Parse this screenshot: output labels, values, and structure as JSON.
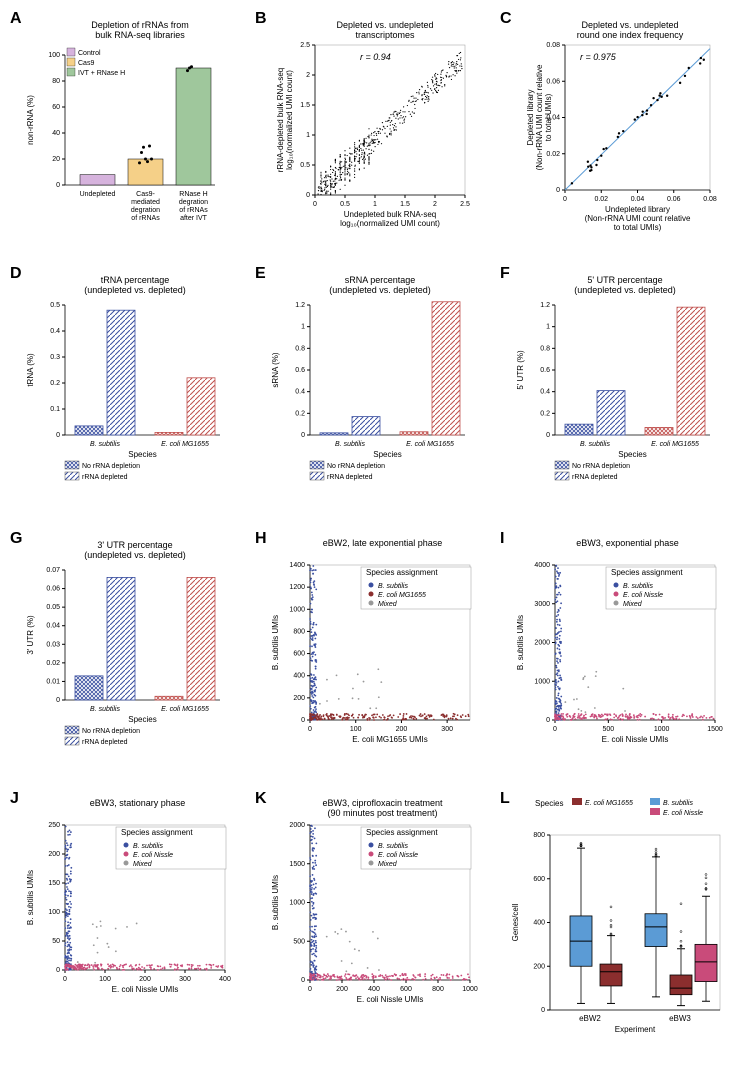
{
  "panelA": {
    "label": "A",
    "title": "Depletion of rRNAs from\nbulk RNA-seq libraries",
    "ylabel": "non-rRNA (%)",
    "ylim": [
      0,
      100
    ],
    "yticks": [
      0,
      20,
      40,
      60,
      80,
      100
    ],
    "categories": [
      "Undepleted",
      "Cas9-\nmediated\ndegration\nof rRNAs",
      "RNase H\ndegration\nof rRNAs\nafter IVT"
    ],
    "values": [
      8,
      20,
      90
    ],
    "bar_colors": [
      "#d6b3dd",
      "#f5d088",
      "#9fc79c"
    ],
    "legend_items": [
      "Control",
      "Cas9",
      "IVT + RNase H"
    ],
    "legend_colors": [
      "#d6b3dd",
      "#f5d088",
      "#9fc79c"
    ],
    "dots": {
      "1": [
        17,
        25,
        29,
        20,
        18,
        30,
        20
      ],
      "2": [
        88,
        90,
        91
      ]
    },
    "dot_color": "#000000"
  },
  "panelB": {
    "label": "B",
    "title": "Depleted vs. undepleted\ntranscriptomes",
    "xlabel": "Undepleted bulk RNA-seq\nlog₁₀(normalized UMI count)",
    "ylabel": "rRNA-depleted bulk RNA-seq\nlog₁₀(normalized UMI count)",
    "xlim": [
      0,
      2.5
    ],
    "ylim": [
      0,
      2.5
    ],
    "xticks": [
      0,
      0.5,
      1.0,
      1.5,
      2.0,
      2.5
    ],
    "yticks": [
      0,
      0.5,
      1.0,
      1.5,
      2.0,
      2.5
    ],
    "r_text": "r = 0.94",
    "point_color": "#000000"
  },
  "panelC": {
    "label": "C",
    "title": "Depleted vs. undepleted\nround one index frequency",
    "xlabel": "Undepleted library\n(Non-rRNA UMI count relative\nto total UMIs)",
    "ylabel": "Depleted library\n(Non-rRNA UMI count relative\nto total UMIs)",
    "xlim": [
      0,
      0.08
    ],
    "ylim": [
      0,
      0.08
    ],
    "xticks": [
      0,
      0.02,
      0.04,
      0.06,
      0.08
    ],
    "yticks": [
      0,
      0.02,
      0.04,
      0.06,
      0.08
    ],
    "r_text": "r = 0.975",
    "point_color": "#000000",
    "line_color": "#5b9bd5"
  },
  "panelD": {
    "label": "D",
    "title": "tRNA percentage\n(undepleted vs. depleted)",
    "ylabel": "tRNA (%)",
    "ylim": [
      0,
      0.5
    ],
    "yticks": [
      0.0,
      0.1,
      0.2,
      0.3,
      0.4,
      0.5
    ],
    "xlabel": "Species",
    "groups": [
      "B. subtilis",
      "E. coli MG1655"
    ],
    "series": [
      "No rRNA depletion",
      "rRNA depleted"
    ],
    "values": [
      [
        0.035,
        0.48
      ],
      [
        0.01,
        0.22
      ]
    ],
    "colors": [
      "#3a4fa0",
      "#c0504d"
    ]
  },
  "panelE": {
    "label": "E",
    "title": "sRNA percentage\n(undepleted vs. depleted)",
    "ylabel": "sRNA (%)",
    "ylim": [
      0,
      1.2
    ],
    "yticks": [
      0.0,
      0.2,
      0.4,
      0.6,
      0.8,
      1.0,
      1.2
    ],
    "xlabel": "Species",
    "groups": [
      "B. subtilis",
      "E. coli MG1655"
    ],
    "series": [
      "No rRNA depletion",
      "rRNA depleted"
    ],
    "values": [
      [
        0.02,
        0.17
      ],
      [
        0.03,
        1.23
      ]
    ],
    "colors": [
      "#3a4fa0",
      "#c0504d"
    ]
  },
  "panelF": {
    "label": "F",
    "title": "5' UTR percentage\n(undepleted vs. depleted)",
    "ylabel": "5' UTR (%)",
    "ylim": [
      0,
      1.2
    ],
    "yticks": [
      0.0,
      0.2,
      0.4,
      0.6,
      0.8,
      1.0,
      1.2
    ],
    "xlabel": "Species",
    "groups": [
      "B. subtilis",
      "E. coli MG1655"
    ],
    "series": [
      "No rRNA depletion",
      "rRNA depleted"
    ],
    "values": [
      [
        0.1,
        0.41
      ],
      [
        0.07,
        1.18
      ]
    ],
    "colors": [
      "#3a4fa0",
      "#c0504d"
    ]
  },
  "panelG": {
    "label": "G",
    "title": "3' UTR percentage\n(undepleted vs. depleted)",
    "ylabel": "3' UTR (%)",
    "ylim": [
      0,
      0.07
    ],
    "yticks": [
      0.0,
      0.01,
      0.02,
      0.03,
      0.04,
      0.05,
      0.06,
      0.07
    ],
    "xlabel": "Species",
    "groups": [
      "B. subtilis",
      "E. coli MG1655"
    ],
    "series": [
      "No rRNA depletion",
      "rRNA depleted"
    ],
    "values": [
      [
        0.013,
        0.066
      ],
      [
        0.002,
        0.066
      ]
    ],
    "colors": [
      "#3a4fa0",
      "#c0504d"
    ]
  },
  "panelH": {
    "label": "H",
    "title": "eBW2, late exponential phase",
    "xlabel": "E. coli MG1655 UMIs",
    "ylabel": "B. subtilis UMIs",
    "xlim": [
      0,
      350
    ],
    "ylim": [
      0,
      1400
    ],
    "xticks": [
      0,
      100,
      200,
      300
    ],
    "yticks": [
      0,
      200,
      400,
      600,
      800,
      1000,
      1200,
      1400
    ],
    "legend_title": "Species assignment",
    "legend_items": [
      "B. subtilis",
      "E. coli MG1655",
      "Mixed"
    ],
    "legend_colors": [
      "#3a4fa0",
      "#8b2e2e",
      "#999999"
    ]
  },
  "panelI": {
    "label": "I",
    "title": "eBW3, exponential phase",
    "xlabel": "E. coli Nissle UMIs",
    "ylabel": "B. subtilis UMIs",
    "xlim": [
      0,
      1500
    ],
    "ylim": [
      0,
      4000
    ],
    "xticks": [
      0,
      500,
      1000,
      1500
    ],
    "yticks": [
      0,
      1000,
      2000,
      3000,
      4000
    ],
    "legend_title": "Species assignment",
    "legend_items": [
      "B. subtilis",
      "E. coli Nissle",
      "Mixed"
    ],
    "legend_colors": [
      "#3a4fa0",
      "#c94b7a",
      "#999999"
    ]
  },
  "panelJ": {
    "label": "J",
    "title": "eBW3, stationary phase",
    "xlabel": "E. coli Nissle UMIs",
    "ylabel": "B. subtilis UMIs",
    "xlim": [
      0,
      400
    ],
    "ylim": [
      0,
      250
    ],
    "xticks": [
      0,
      100,
      200,
      300,
      400
    ],
    "yticks": [
      0,
      50,
      100,
      150,
      200,
      250
    ],
    "legend_title": "Species assignment",
    "legend_items": [
      "B. subtilis",
      "E. coli Nissle",
      "Mixed"
    ],
    "legend_colors": [
      "#3a4fa0",
      "#c94b7a",
      "#999999"
    ]
  },
  "panelK": {
    "label": "K",
    "title": "eBW3, ciprofloxacin treatment\n(90 minutes post treatment)",
    "xlabel": "E. coli Nissle UMIs",
    "ylabel": "B. subtilis UMIs",
    "xlim": [
      0,
      1000
    ],
    "ylim": [
      0,
      2000
    ],
    "xticks": [
      0,
      200,
      400,
      600,
      800,
      1000
    ],
    "yticks": [
      0,
      500,
      1000,
      1500,
      2000
    ],
    "legend_title": "Species assignment",
    "legend_items": [
      "B. subtilis",
      "E. coli Nissle",
      "Mixed"
    ],
    "legend_colors": [
      "#3a4fa0",
      "#c94b7a",
      "#999999"
    ]
  },
  "panelL": {
    "label": "L",
    "title": "",
    "ylabel": "Genes/cell",
    "xlabel": "Experiment",
    "ylim": [
      0,
      800
    ],
    "yticks": [
      0,
      200,
      400,
      600,
      800
    ],
    "groups": [
      "eBW2",
      "eBW3"
    ],
    "legend_title": "Species",
    "legend_items": [
      "B. subtilis",
      "E. coli MG1655",
      "E. coli Nissle"
    ],
    "legend_colors": [
      "#5b9bd5",
      "#8b2e2e",
      "#c94b7a"
    ],
    "boxes": [
      {
        "grp": 0,
        "color": "#5b9bd5",
        "q1": 200,
        "med": 315,
        "q3": 430,
        "wlo": 30,
        "whi": 740
      },
      {
        "grp": 0,
        "color": "#8b2e2e",
        "q1": 110,
        "med": 175,
        "q3": 210,
        "wlo": 30,
        "whi": 340
      },
      {
        "grp": 1,
        "color": "#5b9bd5",
        "q1": 290,
        "med": 380,
        "q3": 440,
        "wlo": 60,
        "whi": 700
      },
      {
        "grp": 1,
        "color": "#8b2e2e",
        "q1": 70,
        "med": 100,
        "q3": 160,
        "wlo": 20,
        "whi": 280
      },
      {
        "grp": 1,
        "color": "#c94b7a",
        "q1": 130,
        "med": 220,
        "q3": 300,
        "wlo": 40,
        "whi": 520
      }
    ]
  }
}
